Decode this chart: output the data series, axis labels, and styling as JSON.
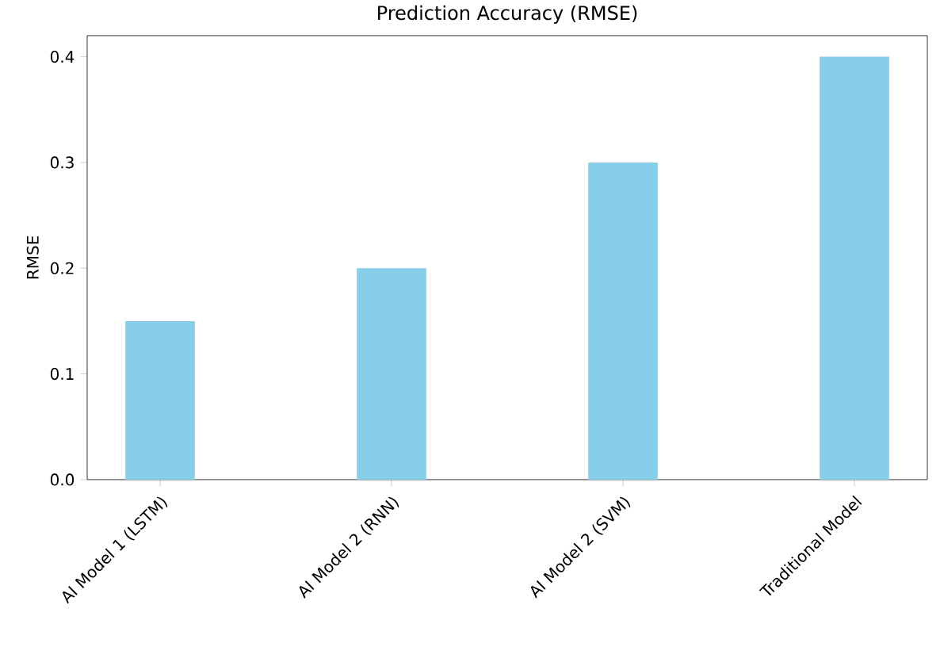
{
  "chart_data": {
    "type": "bar",
    "title": "Prediction Accuracy (RMSE)",
    "ylabel": "RMSE",
    "categories": [
      "AI Model 1 (LSTM)",
      "AI Model 2 (RNN)",
      "AI Model 2 (SVM)",
      "Traditional Model"
    ],
    "values": [
      0.15,
      0.2,
      0.3,
      0.4
    ],
    "color": "#87ceeb",
    "ylim": [
      0,
      0.42
    ],
    "yticks": [
      {
        "value": 0,
        "label": "0.0"
      },
      {
        "value": 0.1,
        "label": "0.1"
      },
      {
        "value": 0.2,
        "label": "0.2"
      },
      {
        "value": 0.3,
        "label": "0.3"
      },
      {
        "value": 0.4,
        "label": "0.4"
      }
    ],
    "grid": false
  }
}
